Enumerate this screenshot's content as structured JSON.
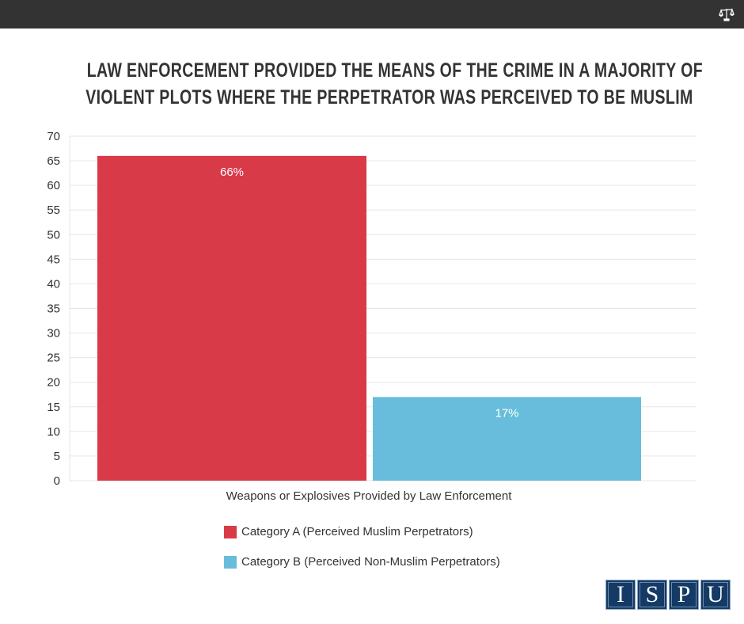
{
  "header": {
    "icon": "scales-icon"
  },
  "title_lines": [
    "LAW ENFORCEMENT PROVIDED THE MEANS OF THE CRIME IN A MAJORITY OF",
    "VIOLENT PLOTS WHERE THE PERPETRATOR WAS PERCEIVED TO BE MUSLIM"
  ],
  "chart_data": {
    "type": "bar",
    "title": "LAW ENFORCEMENT PROVIDED THE MEANS OF THE CRIME IN A MAJORITY OF VIOLENT PLOTS WHERE THE PERPETRATOR WAS PERCEIVED TO BE MUSLIM",
    "categories": [
      "Weapons or Explosives Provided by Law Enforcement"
    ],
    "series": [
      {
        "name": "Category A (Perceived Muslim Perpetrators)",
        "values": [
          66
        ],
        "label": "66%",
        "color": "#d93a48"
      },
      {
        "name": "Category B (Perceived Non-Muslim Perpetrators)",
        "values": [
          17
        ],
        "label": "17%",
        "color": "#68bddc"
      }
    ],
    "xlabel": "Weapons or Explosives Provided by Law Enforcement",
    "ylabel": "",
    "ylim": [
      0,
      70
    ],
    "yticks": [
      0,
      5,
      10,
      15,
      20,
      25,
      30,
      35,
      40,
      45,
      50,
      55,
      60,
      65,
      70
    ],
    "grid": true,
    "legend": "bottom-left"
  },
  "logo": [
    "I",
    "S",
    "P",
    "U"
  ]
}
